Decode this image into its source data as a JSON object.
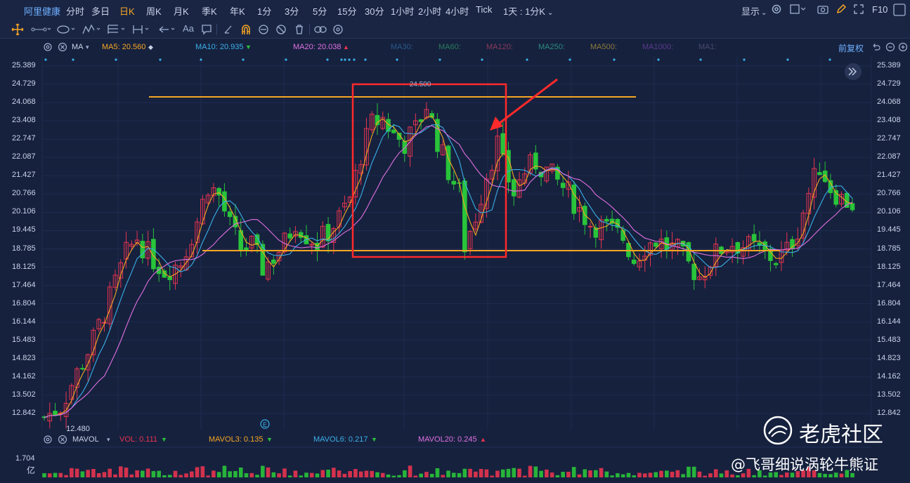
{
  "topbar": {
    "stock_name": "阿里健康",
    "periods": [
      "分时",
      "多日",
      "日K",
      "周K",
      "月K",
      "季K",
      "年K",
      "1分",
      "3分",
      "5分",
      "15分",
      "30分",
      "1小时",
      "2小时",
      "4小时",
      "Tick"
    ],
    "active_period": "日K",
    "period_select": "1天 : 1分K",
    "display_label": "显示",
    "f10_label": "F10"
  },
  "toolbar": {
    "text_tool": "Aa"
  },
  "ma_bar": {
    "name": "MA",
    "ma5": "MA5: 20.560",
    "ma10": "MA10: 20.935",
    "ma20": "MA20: 20.038",
    "ma30": "MA30:",
    "ma60": "MA60:",
    "ma120": "MA120:",
    "ma250": "MA250:",
    "ma500": "MA500:",
    "ma1000": "MA1000:",
    "ma1": "MA1:",
    "adjust": "前复权"
  },
  "colors": {
    "up": "#e8344f",
    "down": "#29c43a",
    "ma5": "#f5a623",
    "ma10": "#3ab0e8",
    "ma20": "#e070e0",
    "hline": "#f5a623",
    "box": "#ff2a2a",
    "bg": "#16213e"
  },
  "price_axis": [
    "25.389",
    "24.729",
    "24.068",
    "23.408",
    "22.747",
    "22.087",
    "21.427",
    "20.766",
    "20.106",
    "19.445",
    "18.785",
    "18.125",
    "17.464",
    "16.804",
    "16.144",
    "15.483",
    "14.823",
    "14.162",
    "13.502",
    "12.842"
  ],
  "annotations": {
    "high_label": "24.500",
    "low_label": "12.480",
    "event_marker": "E"
  },
  "volume_bar": {
    "name": "MAVOL",
    "vol": "VOL: 0.111",
    "mavol3": "MAVOL3: 0.135",
    "mavol6": "MAVOL6: 0.217",
    "mavol20": "MAVOL20: 0.245",
    "axis_top": "1.704",
    "axis_unit": "亿"
  },
  "watermark": {
    "brand": "老虎社区",
    "author": "@飞哥细说涡轮牛熊证"
  }
}
